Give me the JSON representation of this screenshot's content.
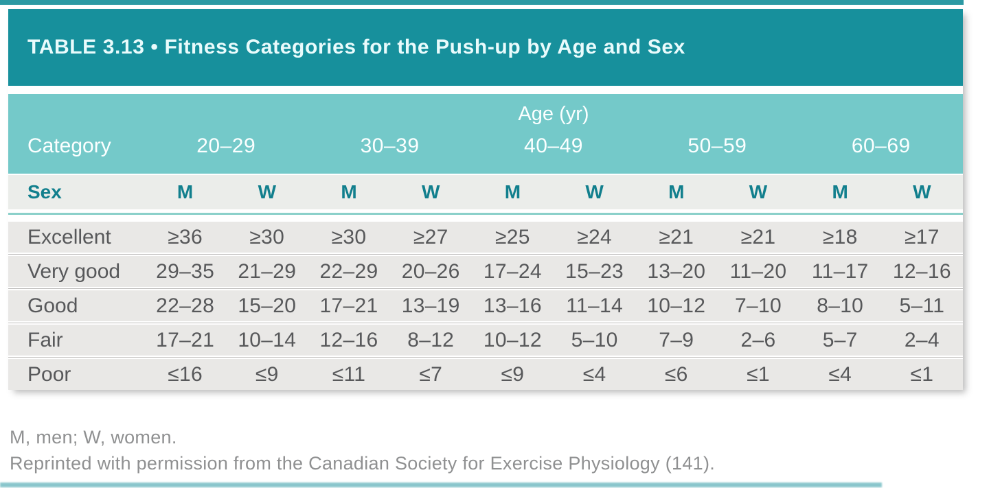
{
  "title": "TABLE 3.13 • Fitness Categories for the Push-up by Age and Sex",
  "table": {
    "age_axis_label": "Age (yr)",
    "category_header": "Category",
    "age_groups": [
      "20–29",
      "30–39",
      "40–49",
      "50–59",
      "60–69"
    ],
    "sex_header": "Sex",
    "sex_labels": [
      "M",
      "W",
      "M",
      "W",
      "M",
      "W",
      "M",
      "W",
      "M",
      "W"
    ],
    "rows": [
      {
        "category": "Excellent",
        "values": [
          "≥36",
          "≥30",
          "≥30",
          "≥27",
          "≥25",
          "≥24",
          "≥21",
          "≥21",
          "≥18",
          "≥17"
        ]
      },
      {
        "category": "Very good",
        "values": [
          "29–35",
          "21–29",
          "22–29",
          "20–26",
          "17–24",
          "15–23",
          "13–20",
          "11–20",
          "11–17",
          "12–16"
        ]
      },
      {
        "category": "Good",
        "values": [
          "22–28",
          "15–20",
          "17–21",
          "13–19",
          "13–16",
          "11–14",
          "10–12",
          "7–10",
          "8–10",
          "5–11"
        ]
      },
      {
        "category": "Fair",
        "values": [
          "17–21",
          "10–14",
          "12–16",
          "8–12",
          "10–12",
          "5–10",
          "7–9",
          "2–6",
          "5–7",
          "2–4"
        ]
      },
      {
        "category": "Poor",
        "values": [
          "≤16",
          "≤9",
          "≤11",
          "≤7",
          "≤9",
          "≤4",
          "≤6",
          "≤1",
          "≤4",
          "≤1"
        ]
      }
    ]
  },
  "footnotes": [
    "M, men; W, women.",
    "Reprinted with permission from the Canadian Society for Exercise Physiology (141)."
  ],
  "colors": {
    "edge_strip": "#2b99a3",
    "title_bar_bg": "#17909c",
    "title_text": "#e9fbfc",
    "age_header_bg": "#74c9c9",
    "age_header_text": "#fbffff",
    "sex_row_bg": "#ebedea",
    "sex_text": "#117f8d",
    "sep_line": "#8bd0ca",
    "data_row_bg": "#e9e8e6",
    "data_text": "#57585a",
    "footnote_text": "#8f9091"
  }
}
